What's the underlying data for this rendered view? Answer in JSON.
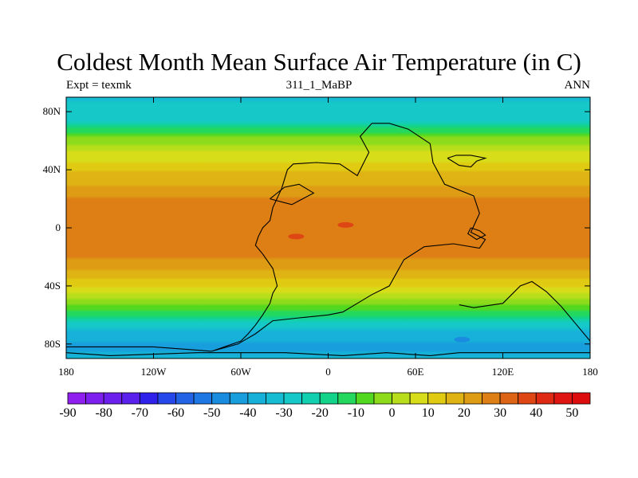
{
  "title": "Coldest Month Mean Surface Air Temperature (in C)",
  "subtitle_left": "Expt = texmk",
  "subtitle_center": "311_1_MaBP",
  "subtitle_right": "ANN",
  "map": {
    "projection": "cylindrical-equidistant",
    "lon_range": [
      -180,
      180
    ],
    "lat_range": [
      -90,
      90
    ],
    "x_ticks": [
      {
        "value": -180,
        "label": "180"
      },
      {
        "value": -120,
        "label": "120W"
      },
      {
        "value": -60,
        "label": "60W"
      },
      {
        "value": 0,
        "label": "0"
      },
      {
        "value": 60,
        "label": "60E"
      },
      {
        "value": 120,
        "label": "120E"
      },
      {
        "value": 180,
        "label": "180"
      }
    ],
    "y_ticks": [
      {
        "value": 80,
        "label": "80N"
      },
      {
        "value": 40,
        "label": "40N"
      },
      {
        "value": 0,
        "label": "0"
      },
      {
        "value": -40,
        "label": "40S"
      },
      {
        "value": -80,
        "label": "80S"
      }
    ],
    "continent_outline_color": "#000000"
  },
  "colorbar": {
    "labels": [
      "-90",
      "-80",
      "-70",
      "-60",
      "-50",
      "-40",
      "-30",
      "-20",
      "-10",
      "0",
      "10",
      "20",
      "30",
      "40",
      "50"
    ],
    "boundaries": [
      -90,
      -85,
      -80,
      -75,
      -70,
      -65,
      -60,
      -55,
      -50,
      -45,
      -40,
      -35,
      -30,
      -25,
      -20,
      -15,
      -10,
      -5,
      0,
      5,
      10,
      15,
      20,
      25,
      30,
      35,
      40,
      45,
      50
    ],
    "colors": [
      "#8f1fef",
      "#7d1fee",
      "#6b20ee",
      "#5a20ec",
      "#2f20ea",
      "#2448ea",
      "#2263e6",
      "#1e78e4",
      "#1a8ce0",
      "#189edc",
      "#16b0d8",
      "#15bcd2",
      "#16c8c8",
      "#12cfb0",
      "#13d38a",
      "#24d85e",
      "#52d81f",
      "#8ddb1a",
      "#b8dd1a",
      "#d8dd1a",
      "#e0cb12",
      "#deb313",
      "#de9c14",
      "#dd7f15",
      "#dd6415",
      "#de4614",
      "#de2a12",
      "#de1510",
      "#de0d0d"
    ]
  },
  "field_bands": [
    {
      "lat": 90,
      "value": -31
    },
    {
      "lat": 75,
      "value": -27
    },
    {
      "lat": 62,
      "value": -4
    },
    {
      "lat": 50,
      "value": 7
    },
    {
      "lat": 35,
      "value": 17
    },
    {
      "lat": 18,
      "value": 27
    },
    {
      "lat": 0,
      "value": 29
    },
    {
      "lat": -18,
      "value": 27
    },
    {
      "lat": -32,
      "value": 18
    },
    {
      "lat": -42,
      "value": 9
    },
    {
      "lat": -52,
      "value": -3
    },
    {
      "lat": -62,
      "value": -18
    },
    {
      "lat": -72,
      "value": -36
    },
    {
      "lat": -82,
      "value": -42
    },
    {
      "lat": -90,
      "value": -35
    }
  ],
  "continents": [
    [
      [
        -80,
        -85
      ],
      [
        -60,
        -78
      ],
      [
        -55,
        -73
      ],
      [
        -50,
        -67
      ],
      [
        -45,
        -60
      ],
      [
        -40,
        -52
      ],
      [
        -38,
        -45
      ],
      [
        -35,
        -40
      ],
      [
        -38,
        -28
      ],
      [
        -45,
        -18
      ],
      [
        -50,
        -12
      ],
      [
        -48,
        -6
      ],
      [
        -45,
        0
      ],
      [
        -40,
        5
      ],
      [
        -38,
        14
      ],
      [
        -32,
        27
      ],
      [
        -28,
        40
      ],
      [
        -24,
        44
      ],
      [
        -8,
        45
      ],
      [
        8,
        44
      ],
      [
        20,
        36
      ],
      [
        28,
        52
      ],
      [
        22,
        63
      ],
      [
        30,
        72
      ],
      [
        42,
        72
      ],
      [
        55,
        68
      ],
      [
        70,
        58
      ],
      [
        72,
        45
      ],
      [
        80,
        30
      ],
      [
        100,
        22
      ],
      [
        104,
        10
      ],
      [
        98,
        -3
      ],
      [
        108,
        -8
      ],
      [
        104,
        -14
      ],
      [
        86,
        -11
      ],
      [
        66,
        -13
      ],
      [
        52,
        -22
      ],
      [
        42,
        -40
      ],
      [
        30,
        -46
      ],
      [
        20,
        -52
      ],
      [
        10,
        -58
      ],
      [
        0,
        -60
      ],
      [
        -20,
        -62
      ],
      [
        -38,
        -64
      ],
      [
        -50,
        -73
      ],
      [
        -62,
        -80
      ],
      [
        -80,
        -85
      ]
    ],
    [
      [
        82,
        48
      ],
      [
        90,
        43
      ],
      [
        98,
        42
      ],
      [
        102,
        46
      ],
      [
        108,
        48
      ],
      [
        98,
        50
      ],
      [
        88,
        50
      ],
      [
        82,
        48
      ]
    ],
    [
      [
        90,
        -53
      ],
      [
        100,
        -55
      ],
      [
        120,
        -52
      ],
      [
        132,
        -40
      ],
      [
        140,
        -37
      ],
      [
        150,
        -44
      ],
      [
        160,
        -54
      ],
      [
        170,
        -66
      ],
      [
        180,
        -78
      ],
      [
        180,
        -86
      ],
      [
        90,
        -86
      ],
      [
        70,
        -88
      ],
      [
        40,
        -86
      ],
      [
        10,
        -88
      ],
      [
        -30,
        -86
      ],
      [
        -90,
        -86
      ],
      [
        -150,
        -88
      ],
      [
        -180,
        -86
      ],
      [
        -180,
        -82
      ],
      [
        -120,
        -82
      ],
      [
        -80,
        -85
      ]
    ],
    [
      [
        -40,
        20
      ],
      [
        -30,
        28
      ],
      [
        -20,
        30
      ],
      [
        -10,
        24
      ],
      [
        -25,
        16
      ],
      [
        -40,
        20
      ]
    ],
    [
      [
        98,
        0
      ],
      [
        104,
        -2
      ],
      [
        108,
        -5
      ],
      [
        102,
        -8
      ],
      [
        96,
        -4
      ],
      [
        98,
        0
      ]
    ]
  ],
  "hotspots": [
    {
      "lon": -22,
      "lat": -6,
      "value": 38
    },
    {
      "lon": 12,
      "lat": 2,
      "value": 36
    },
    {
      "lon": 92,
      "lat": -77,
      "value": -48
    }
  ]
}
